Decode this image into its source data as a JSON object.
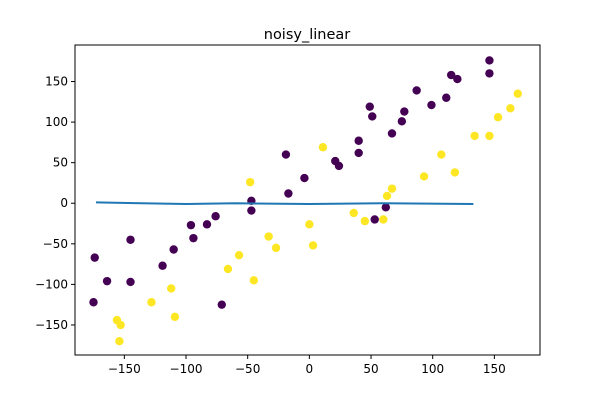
{
  "chart_data": {
    "type": "scatter",
    "title": "noisy_linear",
    "xlabel": "",
    "ylabel": "",
    "xlim": [
      -190,
      187
    ],
    "ylim": [
      -187,
      195
    ],
    "xticks": [
      -150,
      -100,
      -50,
      0,
      50,
      100,
      150
    ],
    "yticks": [
      -150,
      -100,
      -50,
      0,
      50,
      100,
      150
    ],
    "xtick_labels": [
      "−150",
      "−100",
      "−50",
      "0",
      "50",
      "100",
      "150"
    ],
    "ytick_labels": [
      "−150",
      "−100",
      "−50",
      "0",
      "50",
      "100",
      "150"
    ],
    "grid": false,
    "series": [
      {
        "color": "#440154",
        "points": [
          [
            -175,
            -122
          ],
          [
            -174,
            -67
          ],
          [
            -164,
            -96
          ],
          [
            -145,
            -45
          ],
          [
            -145,
            -97
          ],
          [
            -119,
            -77
          ],
          [
            -110,
            -57
          ],
          [
            -96,
            -27
          ],
          [
            -94,
            -43
          ],
          [
            -83,
            -26
          ],
          [
            -76,
            -16
          ],
          [
            -71,
            -125
          ],
          [
            -47,
            3
          ],
          [
            -47,
            -9
          ],
          [
            -19,
            60
          ],
          [
            -17,
            12
          ],
          [
            -4,
            31
          ],
          [
            21,
            52
          ],
          [
            24,
            46
          ],
          [
            40,
            77
          ],
          [
            40,
            62
          ],
          [
            49,
            119
          ],
          [
            51,
            107
          ],
          [
            53,
            -20
          ],
          [
            62,
            -5
          ],
          [
            67,
            86
          ],
          [
            75,
            101
          ],
          [
            77,
            113
          ],
          [
            87,
            139
          ],
          [
            99,
            121
          ],
          [
            111,
            130
          ],
          [
            115,
            158
          ],
          [
            120,
            153
          ],
          [
            146,
            176
          ],
          [
            146,
            160
          ]
        ]
      },
      {
        "color": "#fde725",
        "points": [
          [
            -156,
            -144
          ],
          [
            -153,
            -150
          ],
          [
            -154,
            -170
          ],
          [
            -128,
            -122
          ],
          [
            -112,
            -105
          ],
          [
            -109,
            -140
          ],
          [
            -66,
            -81
          ],
          [
            -57,
            -64
          ],
          [
            -48,
            26
          ],
          [
            -45,
            -95
          ],
          [
            -33,
            -41
          ],
          [
            -27,
            -55
          ],
          [
            0,
            -26
          ],
          [
            3,
            -52
          ],
          [
            11,
            69
          ],
          [
            36,
            -12
          ],
          [
            45,
            -22
          ],
          [
            60,
            -20
          ],
          [
            63,
            9
          ],
          [
            67,
            18
          ],
          [
            93,
            33
          ],
          [
            107,
            60
          ],
          [
            118,
            38
          ],
          [
            134,
            83
          ],
          [
            146,
            83
          ],
          [
            153,
            106
          ],
          [
            163,
            117
          ],
          [
            169,
            135
          ]
        ]
      }
    ],
    "line": {
      "color": "#1f77b4",
      "points": [
        [
          -173,
          1
        ],
        [
          -100,
          -1
        ],
        [
          -60,
          0
        ],
        [
          0,
          -1
        ],
        [
          60,
          0
        ],
        [
          133,
          -1
        ]
      ]
    }
  }
}
